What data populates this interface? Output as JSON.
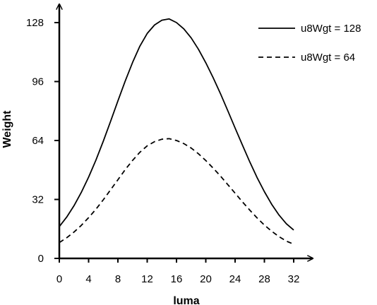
{
  "chart_data": {
    "type": "line",
    "title": "",
    "xlabel": "luma",
    "ylabel": "Weight",
    "xlim": [
      0,
      32
    ],
    "ylim": [
      0,
      128
    ],
    "x_ticks": [
      "0",
      "4",
      "8",
      "12",
      "16",
      "20",
      "24",
      "28",
      "32"
    ],
    "y_ticks": [
      "0",
      "32",
      "64",
      "96",
      "128"
    ],
    "grid": false,
    "legend_position": "top-right",
    "x": [
      0,
      1,
      2,
      3,
      4,
      5,
      6,
      7,
      8,
      9,
      10,
      11,
      12,
      13,
      14,
      15,
      16,
      17,
      18,
      19,
      20,
      21,
      22,
      23,
      24,
      25,
      26,
      27,
      28,
      29,
      30,
      31,
      32
    ],
    "series": [
      {
        "name": "u8Wgt = 128",
        "style": "solid",
        "values": [
          17.3,
          22.4,
          28.6,
          35.8,
          44.1,
          53.4,
          63.6,
          74.4,
          85.5,
          96.3,
          106.4,
          115.2,
          122.1,
          126.7,
          129.3,
          130,
          128,
          124.6,
          119.7,
          113.5,
          106.2,
          98.1,
          89.4,
          80.2,
          70.8,
          61.5,
          52.4,
          43.9,
          36.2,
          29.3,
          23.5,
          18.8,
          15.4
        ]
      },
      {
        "name": "u8Wgt = 64",
        "style": "dashed",
        "values": [
          8.6,
          11.2,
          14.3,
          17.9,
          22.1,
          26.7,
          31.8,
          37.2,
          42.7,
          48.2,
          53.2,
          57.6,
          61.1,
          63.4,
          64.7,
          65,
          64,
          62.3,
          59.9,
          56.8,
          53.1,
          49,
          44.7,
          40.1,
          35.4,
          30.7,
          26.2,
          22,
          18.1,
          14.7,
          11.8,
          9.4,
          7.7
        ]
      }
    ]
  }
}
